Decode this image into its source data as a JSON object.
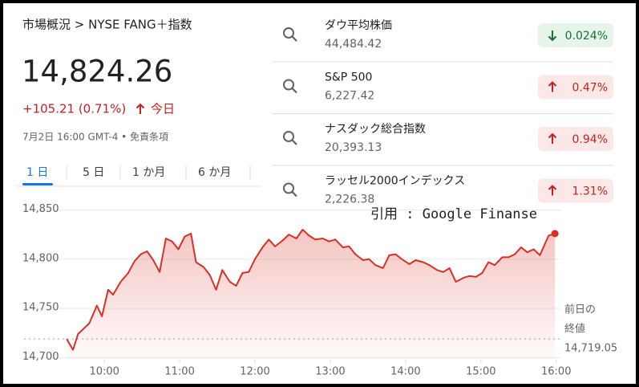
{
  "breadcrumb": "市場概況 > NYSE FANG＋指数",
  "price": "14,824.26",
  "change": "+105.21 (0.71%)",
  "change_direction": "up",
  "change_period": "今日",
  "info": "7月2日 16:00 GMT-4 • 免責条項",
  "tabs": [
    "1 日",
    "5 日",
    "1 か月",
    "6 か月"
  ],
  "active_tab": 0,
  "quotes": [
    {
      "name": "ダウ平均株価",
      "value": "44,484.42",
      "change": "0.024%",
      "direction": "down"
    },
    {
      "name": "S&P 500",
      "value": "6,227.42",
      "change": "0.47%",
      "direction": "up"
    },
    {
      "name": "ナスダック総合指数",
      "value": "20,393.13",
      "change": "0.94%",
      "direction": "up"
    },
    {
      "name": "ラッセル2000インデックス",
      "value": "2,226.38",
      "change": "1.31%",
      "direction": "up"
    }
  ],
  "watermark": "引用 : Google Finanse",
  "chart_data": {
    "type": "line",
    "x": [
      570,
      575,
      579,
      588,
      594,
      598,
      603,
      607,
      613,
      619,
      624,
      629,
      634,
      639,
      644,
      649,
      654,
      659,
      664,
      669,
      673,
      679,
      684,
      689,
      694,
      700,
      705,
      710,
      715,
      720,
      726,
      731,
      736,
      742,
      747,
      753,
      758,
      763,
      768,
      774,
      779,
      784,
      790,
      795,
      800,
      806,
      811,
      816,
      822,
      827,
      832,
      837,
      843,
      848,
      854,
      859,
      865,
      870,
      875,
      880,
      886,
      891,
      896,
      901,
      906,
      911,
      917,
      922,
      927,
      932,
      937,
      942,
      947,
      954,
      959
    ],
    "values": [
      14719,
      14708,
      14724,
      14735,
      14753,
      14742,
      14769,
      14764,
      14777,
      14786,
      14798,
      14805,
      14808,
      14799,
      14787,
      14821,
      14818,
      14810,
      14823,
      14826,
      14797,
      14792,
      14784,
      14769,
      14789,
      14777,
      14773,
      14786,
      14787,
      14800,
      14812,
      14820,
      14813,
      14819,
      14825,
      14821,
      14830,
      14824,
      14820,
      14821,
      14818,
      14820,
      14812,
      14813,
      14805,
      14799,
      14800,
      14794,
      14791,
      14804,
      14805,
      14800,
      14795,
      14799,
      14797,
      14794,
      14789,
      14787,
      14791,
      14777,
      14781,
      14783,
      14782,
      14786,
      14797,
      14794,
      14802,
      14802,
      14805,
      14812,
      14807,
      14810,
      14804,
      14824,
      14826
    ],
    "color": "#d93025",
    "xlim": [
      536,
      964
    ],
    "xticks": [
      {
        "value": 600,
        "label": "10:00"
      },
      {
        "value": 660,
        "label": "11:00"
      },
      {
        "value": 720,
        "label": "12:00"
      },
      {
        "value": 780,
        "label": "13:00"
      },
      {
        "value": 840,
        "label": "14:00"
      },
      {
        "value": 900,
        "label": "15:00"
      },
      {
        "value": 960,
        "label": "16:00"
      }
    ],
    "ylim": [
      14698,
      14852
    ],
    "yticks": [
      {
        "value": 14700,
        "label": "14,700"
      },
      {
        "value": 14750,
        "label": "14,750"
      },
      {
        "value": 14800,
        "label": "14,800"
      },
      {
        "value": 14850,
        "label": "14,850"
      }
    ],
    "previous_close": {
      "value": 14719.05,
      "label": "14,719.05"
    },
    "previous_close_title": [
      "前日の",
      "終値"
    ]
  }
}
